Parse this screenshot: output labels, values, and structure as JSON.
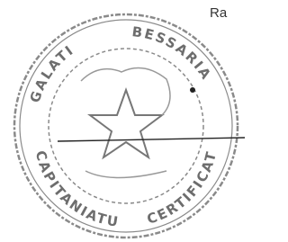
{
  "header": {
    "text": "Ra"
  },
  "stamp": {
    "ring_texts": [
      "GALATI",
      "BESSARIA",
      "CERTIFICAT",
      "CAPITANIATU"
    ]
  }
}
